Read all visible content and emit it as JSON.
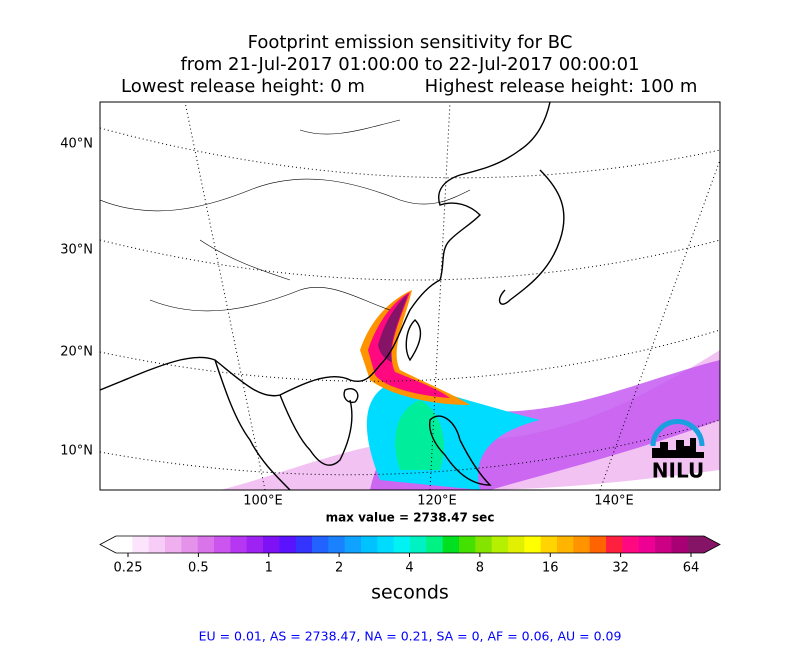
{
  "title": {
    "line1": "Footprint emission sensitivity for BC",
    "line2": "from 21-Jul-2017 01:00:00 to 22-Jul-2017 00:00:01",
    "lowest": "Lowest release height: 0 m",
    "highest": "Highest release height: 100 m"
  },
  "map": {
    "lat_labels": [
      "40°N",
      "30°N",
      "20°N",
      "10°N"
    ],
    "lon_labels": [
      "100°E",
      "120°E",
      "140°E"
    ],
    "max_value": "max value = 2738.47 sec",
    "logo": "NILU"
  },
  "colorbar": {
    "ticks": [
      "0.25",
      "0.5",
      "1",
      "2",
      "4",
      "8",
      "16",
      "32",
      "64"
    ],
    "label": "seconds",
    "colors": [
      "#ffffff",
      "#fde4fd",
      "#f7ccf7",
      "#f0b0f0",
      "#e592ea",
      "#da74ea",
      "#cc55f0",
      "#b636f2",
      "#9e22f2",
      "#7e12f4",
      "#5a12ff",
      "#3434ff",
      "#2262ff",
      "#1a82ff",
      "#10a2ff",
      "#00c2ff",
      "#00dcff",
      "#00f2f2",
      "#00f2c2",
      "#00f282",
      "#00e020",
      "#44e000",
      "#84e400",
      "#b4f000",
      "#e0f000",
      "#ffff00",
      "#ffd400",
      "#ffb400",
      "#ff9400",
      "#ff6400",
      "#ff2040",
      "#ff0880",
      "#ee0094",
      "#cc0084",
      "#a80074",
      "#861466"
    ]
  },
  "footer": "EU = 0.01,  AS = 2738.47,  NA = 0.21,  SA = 0,  AF = 0.06,  AU = 0.09"
}
